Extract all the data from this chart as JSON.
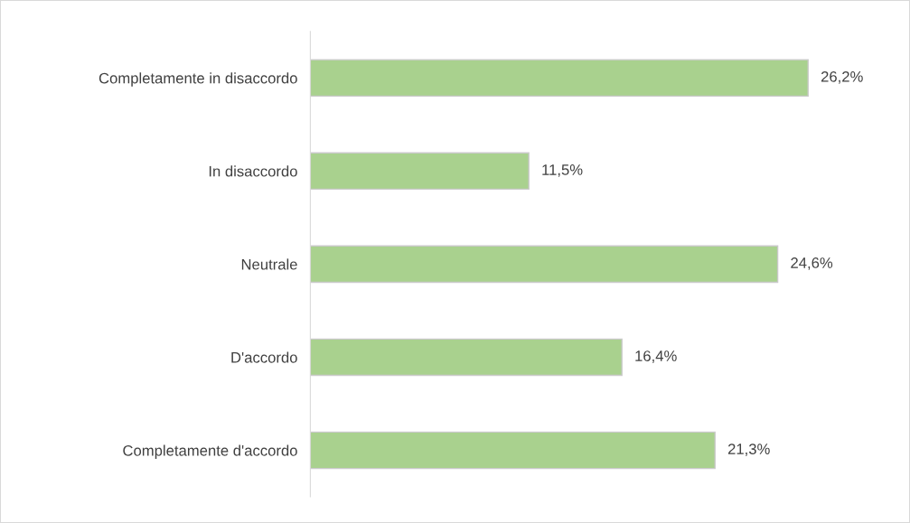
{
  "chart_data": {
    "type": "bar",
    "orientation": "horizontal",
    "categories": [
      "Completamente in disaccordo",
      "In disaccordo",
      "Neutrale",
      "D'accordo",
      "Completamente d'accordo"
    ],
    "values": [
      26.2,
      11.5,
      24.6,
      16.4,
      21.3
    ],
    "value_labels": [
      "26,2%",
      "11,5%",
      "24,6%",
      "16,4%",
      "21,3%"
    ],
    "color": "#a9d18e",
    "grid": false,
    "legend": false
  }
}
